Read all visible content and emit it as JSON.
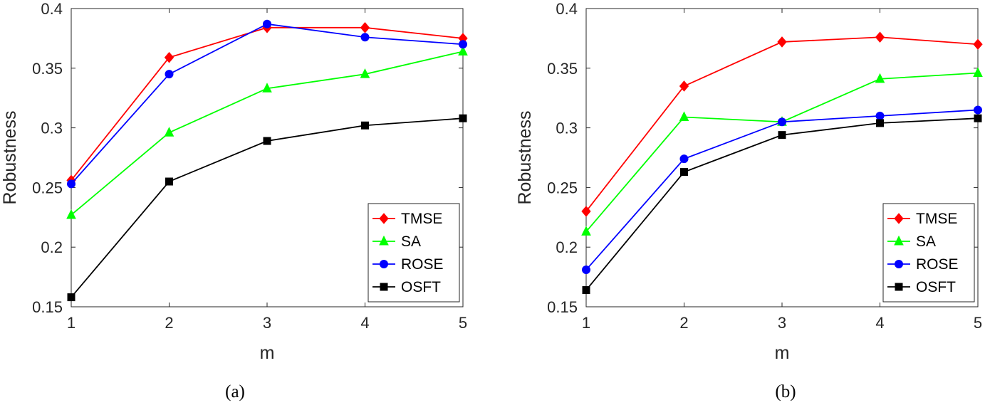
{
  "chart_data": [
    {
      "type": "line",
      "caption": "(a)",
      "xlabel": "m",
      "ylabel": "Robustness",
      "x": [
        1,
        2,
        3,
        4,
        5
      ],
      "xlim": [
        1,
        5
      ],
      "ylim": [
        0.15,
        0.4
      ],
      "xticks": [
        "1",
        "2",
        "3",
        "4",
        "5"
      ],
      "yticks": [
        "0.15",
        "0.2",
        "0.25",
        "0.3",
        "0.35",
        "0.4"
      ],
      "grid": false,
      "legend_position": "bottom-right",
      "series": [
        {
          "name": "TMSE",
          "color": "#ff0000",
          "marker": "diamond",
          "values": [
            0.256,
            0.359,
            0.384,
            0.384,
            0.375
          ]
        },
        {
          "name": "SA",
          "color": "#00ff00",
          "marker": "triangle",
          "values": [
            0.227,
            0.296,
            0.333,
            0.345,
            0.364
          ]
        },
        {
          "name": "ROSE",
          "color": "#0000ff",
          "marker": "circle",
          "values": [
            0.253,
            0.345,
            0.387,
            0.376,
            0.37
          ]
        },
        {
          "name": "OSFT",
          "color": "#000000",
          "marker": "square",
          "values": [
            0.158,
            0.255,
            0.289,
            0.302,
            0.308
          ]
        }
      ]
    },
    {
      "type": "line",
      "caption": "(b)",
      "xlabel": "m",
      "ylabel": "Robustness",
      "x": [
        1,
        2,
        3,
        4,
        5
      ],
      "xlim": [
        1,
        5
      ],
      "ylim": [
        0.15,
        0.4
      ],
      "xticks": [
        "1",
        "2",
        "3",
        "4",
        "5"
      ],
      "yticks": [
        "0.15",
        "0.2",
        "0.25",
        "0.3",
        "0.35",
        "0.4"
      ],
      "grid": false,
      "legend_position": "bottom-right",
      "series": [
        {
          "name": "TMSE",
          "color": "#ff0000",
          "marker": "diamond",
          "values": [
            0.23,
            0.335,
            0.372,
            0.376,
            0.37
          ]
        },
        {
          "name": "SA",
          "color": "#00ff00",
          "marker": "triangle",
          "values": [
            0.213,
            0.309,
            0.305,
            0.341,
            0.346
          ]
        },
        {
          "name": "ROSE",
          "color": "#0000ff",
          "marker": "circle",
          "values": [
            0.181,
            0.274,
            0.305,
            0.31,
            0.315
          ]
        },
        {
          "name": "OSFT",
          "color": "#000000",
          "marker": "square",
          "values": [
            0.164,
            0.263,
            0.294,
            0.304,
            0.308
          ]
        }
      ]
    }
  ]
}
